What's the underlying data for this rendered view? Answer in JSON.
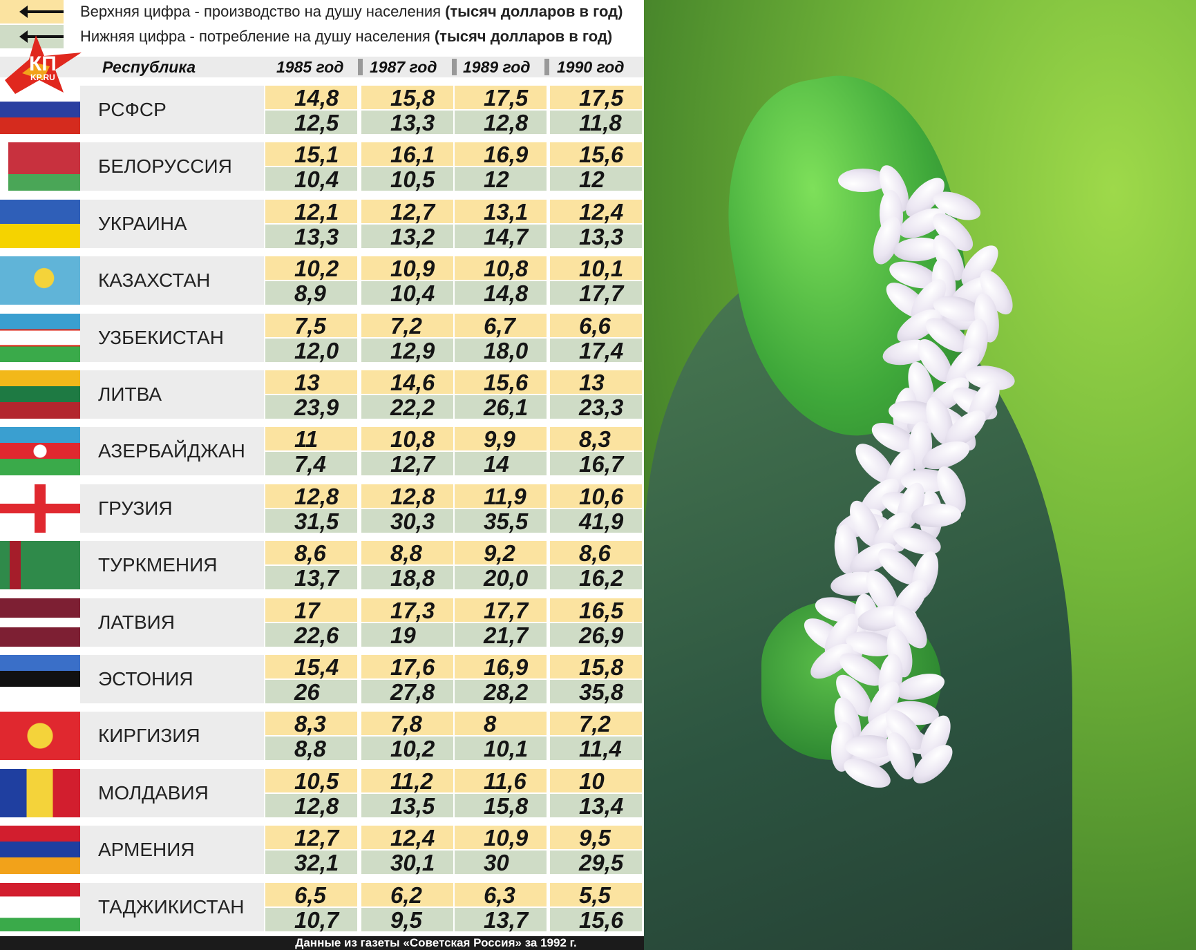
{
  "legend": {
    "top": {
      "text": "Верхняя цифра - производство на душу населения",
      "unit": "(тысяч долларов в год)",
      "color": "#fbe3a0"
    },
    "bottom": {
      "text": "Нижняя цифра - потребление на душу населения",
      "unit": "(тысяч долларов в год)",
      "color": "#cfdcc6"
    }
  },
  "logo": {
    "text": "КП",
    "sub": "KP.RU"
  },
  "header": {
    "republic": "Республика",
    "years": [
      "1985 год",
      "1987 год",
      "1989 год",
      "1990 год"
    ]
  },
  "rows": [
    {
      "name": "РСФСР",
      "flag": "russia",
      "production": [
        "14,8",
        "15,8",
        "17,5",
        "17,5"
      ],
      "consumption": [
        "12,5",
        "13,3",
        "12,8",
        "11,8"
      ]
    },
    {
      "name": "БЕЛОРУССИЯ",
      "flag": "belarus",
      "production": [
        "15,1",
        "16,1",
        "16,9",
        "15,6"
      ],
      "consumption": [
        "10,4",
        "10,5",
        "12",
        "12"
      ]
    },
    {
      "name": "УКРАИНА",
      "flag": "ukraine",
      "production": [
        "12,1",
        "12,7",
        "13,1",
        "12,4"
      ],
      "consumption": [
        "13,3",
        "13,2",
        "14,7",
        "13,3"
      ]
    },
    {
      "name": "КАЗАХСТАН",
      "flag": "kazakhstan",
      "production": [
        "10,2",
        "10,9",
        "10,8",
        "10,1"
      ],
      "consumption": [
        "8,9",
        "10,4",
        "14,8",
        "17,7"
      ]
    },
    {
      "name": "УЗБЕКИСТАН",
      "flag": "uzbekistan",
      "production": [
        "7,5",
        "7,2",
        "6,7",
        "6,6"
      ],
      "consumption": [
        "12,0",
        "12,9",
        "18,0",
        "17,4"
      ]
    },
    {
      "name": "ЛИТВА",
      "flag": "lithuania",
      "production": [
        "13",
        "14,6",
        "15,6",
        "13"
      ],
      "consumption": [
        "23,9",
        "22,2",
        "26,1",
        "23,3"
      ]
    },
    {
      "name": "АЗЕРБАЙДЖАН",
      "flag": "azerbaijan",
      "production": [
        "11",
        "10,8",
        "9,9",
        "8,3"
      ],
      "consumption": [
        "7,4",
        "12,7",
        "14",
        "16,7"
      ]
    },
    {
      "name": "ГРУЗИЯ",
      "flag": "georgia",
      "production": [
        "12,8",
        "12,8",
        "11,9",
        "10,6"
      ],
      "consumption": [
        "31,5",
        "30,3",
        "35,5",
        "41,9"
      ]
    },
    {
      "name": "ТУРКМЕНИЯ",
      "flag": "turkmenistan",
      "production": [
        "8,6",
        "8,8",
        "9,2",
        "8,6"
      ],
      "consumption": [
        "13,7",
        "18,8",
        "20,0",
        "16,2"
      ]
    },
    {
      "name": "ЛАТВИЯ",
      "flag": "latvia",
      "production": [
        "17",
        "17,3",
        "17,7",
        "16,5"
      ],
      "consumption": [
        "22,6",
        "19",
        "21,7",
        "26,9"
      ]
    },
    {
      "name": "ЭСТОНИЯ",
      "flag": "estonia",
      "production": [
        "15,4",
        "17,6",
        "16,9",
        "15,8"
      ],
      "consumption": [
        "26",
        "27,8",
        "28,2",
        "35,8"
      ]
    },
    {
      "name": "КИРГИЗИЯ",
      "flag": "kyrgyzstan",
      "production": [
        "8,3",
        "7,8",
        "8",
        "7,2"
      ],
      "consumption": [
        "8,8",
        "10,2",
        "10,1",
        "11,4"
      ]
    },
    {
      "name": "МОЛДАВИЯ",
      "flag": "moldova",
      "production": [
        "10,5",
        "11,2",
        "11,6",
        "10"
      ],
      "consumption": [
        "12,8",
        "13,5",
        "15,8",
        "13,4"
      ]
    },
    {
      "name": "АРМЕНИЯ",
      "flag": "armenia",
      "production": [
        "12,7",
        "12,4",
        "10,9",
        "9,5"
      ],
      "consumption": [
        "32,1",
        "30,1",
        "30",
        "29,5"
      ]
    },
    {
      "name": "ТАДЖИКИСТАН",
      "flag": "tajikistan",
      "production": [
        "6,5",
        "6,2",
        "6,3",
        "5,5"
      ],
      "consumption": [
        "10,7",
        "9,5",
        "13,7",
        "15,6"
      ]
    }
  ],
  "footer": "Данные из газеты «Советская Россия» за 1992 г."
}
